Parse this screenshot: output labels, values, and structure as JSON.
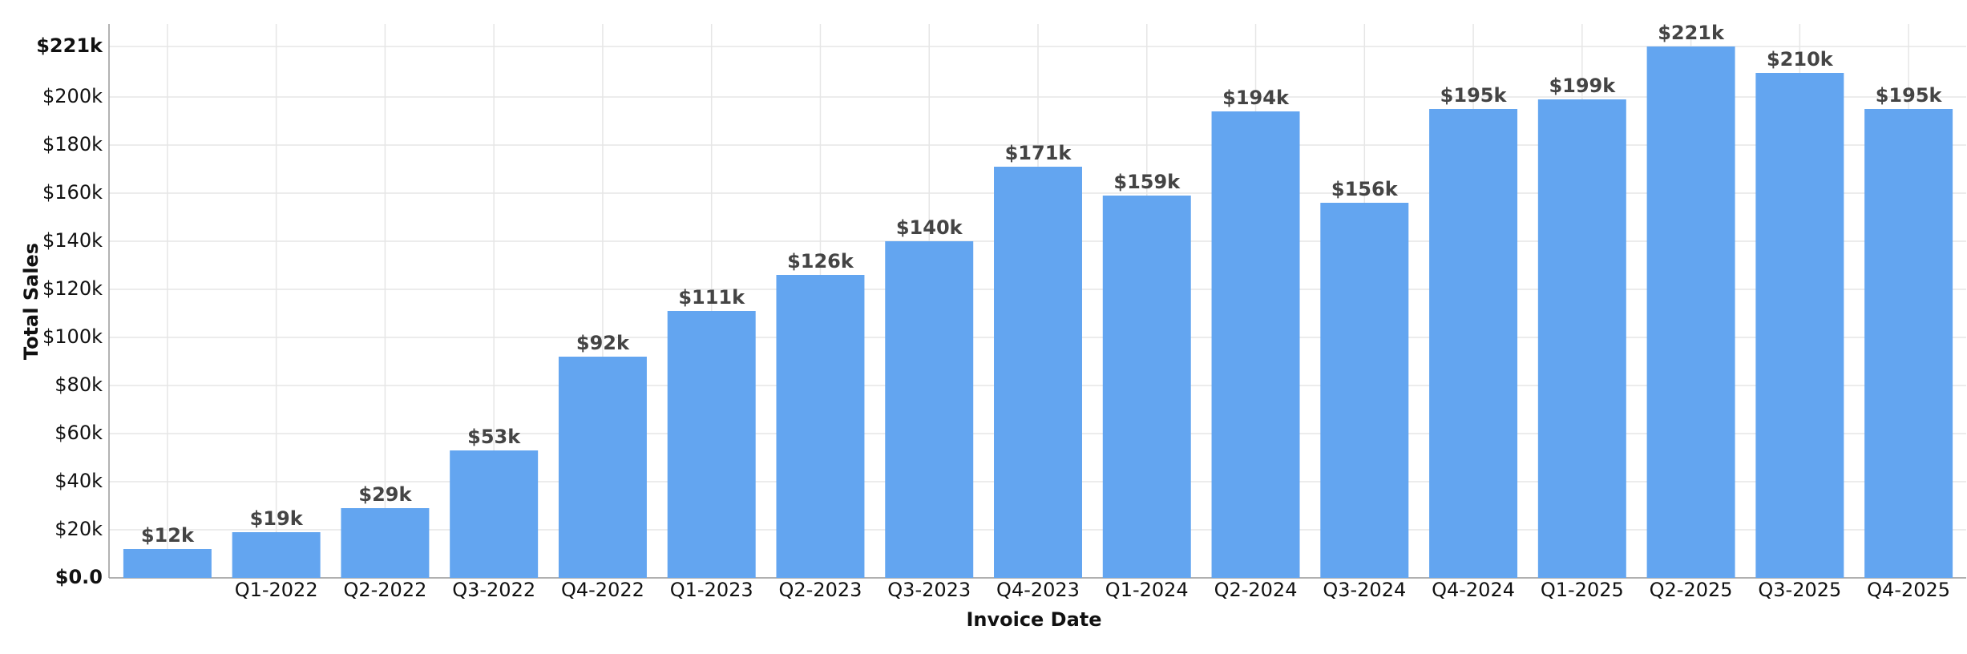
{
  "chart_data": {
    "type": "bar",
    "x_label": "Invoice Date",
    "y_label": "Total Sales",
    "categories": [
      null,
      "Q1-2022",
      "Q2-2022",
      "Q3-2022",
      "Q4-2022",
      "Q1-2023",
      "Q2-2023",
      "Q3-2023",
      "Q4-2023",
      "Q1-2024",
      "Q2-2024",
      "Q3-2024",
      "Q4-2024",
      "Q1-2025",
      "Q2-2025",
      "Q3-2025",
      "Q4-2025"
    ],
    "values": [
      12000,
      19000,
      29000,
      53000,
      92000,
      111000,
      126000,
      140000,
      171000,
      159000,
      194000,
      156000,
      195000,
      199000,
      221000,
      210000,
      195000
    ],
    "value_labels": [
      "$12k",
      "$19k",
      "$29k",
      "$53k",
      "$92k",
      "$111k",
      "$126k",
      "$140k",
      "$171k",
      "$159k",
      "$194k",
      "$156k",
      "$195k",
      "$199k",
      "$221k",
      "$210k",
      "$195k"
    ],
    "color": "#63a5f0",
    "ylim": [
      0,
      221000
    ],
    "yticks": [
      {
        "value": 0,
        "label": "$0.0"
      },
      {
        "value": 20000,
        "label": "$20k"
      },
      {
        "value": 40000,
        "label": "$40k"
      },
      {
        "value": 60000,
        "label": "$60k"
      },
      {
        "value": 80000,
        "label": "$80k"
      },
      {
        "value": 100000,
        "label": "$100k"
      },
      {
        "value": 120000,
        "label": "$120k"
      },
      {
        "value": 140000,
        "label": "$140k"
      },
      {
        "value": 160000,
        "label": "$160k"
      },
      {
        "value": 180000,
        "label": "$180k"
      },
      {
        "value": 200000,
        "label": "$200k"
      },
      {
        "value": 221000,
        "label": "$221k"
      }
    ],
    "grid": true
  }
}
